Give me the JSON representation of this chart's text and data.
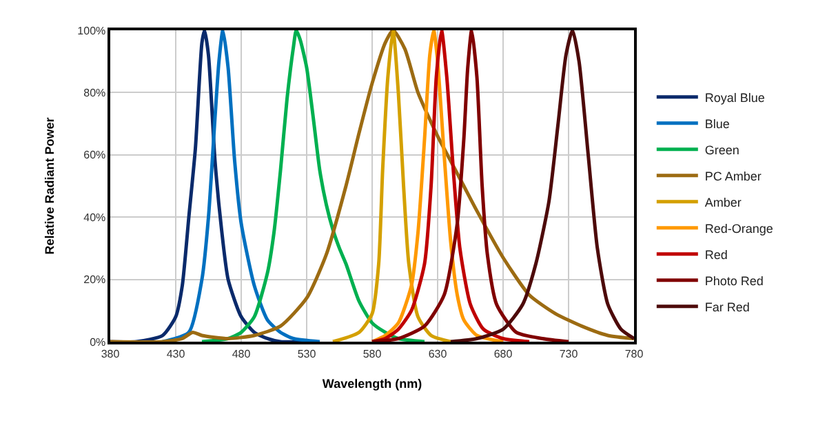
{
  "chart_data": {
    "type": "line",
    "xlabel": "Wavelength (nm)",
    "ylabel": "Relative Radiant Power",
    "xlim": [
      380,
      780
    ],
    "xticks": [
      380,
      430,
      480,
      530,
      580,
      630,
      680,
      730,
      780
    ],
    "ylim": [
      0,
      100
    ],
    "yticks": [
      {
        "value": 0,
        "label": "0%"
      },
      {
        "value": 20,
        "label": "20%"
      },
      {
        "value": 40,
        "label": "40%"
      },
      {
        "value": 60,
        "label": "60%"
      },
      {
        "value": 80,
        "label": "80%"
      },
      {
        "value": 100,
        "label": "100%"
      }
    ],
    "grid": true,
    "legend": "right",
    "marker": "none",
    "line_style": "solid",
    "series": [
      {
        "name": "Royal Blue",
        "color": "#0a2a6b",
        "x": [
          380,
          400,
          420,
          430,
          435,
          440,
          445,
          450,
          452,
          455,
          460,
          465,
          470,
          480,
          490,
          500,
          510,
          530
        ],
        "values": [
          0,
          0,
          2,
          8,
          18,
          40,
          62,
          96,
          100,
          92,
          58,
          36,
          20,
          8,
          3,
          1,
          0,
          0
        ]
      },
      {
        "name": "Blue",
        "color": "#0070c0",
        "x": [
          420,
          440,
          450,
          455,
          460,
          463,
          466,
          470,
          475,
          480,
          490,
          500,
          510,
          520,
          540
        ],
        "values": [
          0,
          3,
          20,
          40,
          72,
          90,
          100,
          88,
          58,
          38,
          18,
          7,
          3,
          1,
          0
        ]
      },
      {
        "name": "Green",
        "color": "#00b050",
        "x": [
          450,
          470,
          480,
          490,
          500,
          505,
          510,
          515,
          520,
          522,
          525,
          530,
          535,
          540,
          545,
          550,
          555,
          560,
          570,
          580,
          590,
          600,
          620
        ],
        "values": [
          0,
          1,
          3,
          8,
          22,
          35,
          55,
          78,
          95,
          100,
          97,
          88,
          72,
          55,
          44,
          36,
          30,
          25,
          13,
          6,
          3,
          1,
          0
        ]
      },
      {
        "name": "PC Amber",
        "color": "#9c6b12",
        "x": [
          380,
          420,
          435,
          443,
          450,
          470,
          490,
          510,
          530,
          545,
          560,
          570,
          580,
          590,
          596,
          605,
          615,
          630,
          640,
          650,
          660,
          680,
          700,
          720,
          740,
          760,
          780
        ],
        "values": [
          0,
          0,
          1,
          3,
          2,
          1,
          2,
          5,
          14,
          28,
          50,
          67,
          83,
          96,
          100,
          94,
          80,
          66,
          58,
          50,
          42,
          27,
          15,
          9,
          5,
          2,
          1
        ]
      },
      {
        "name": "Amber",
        "color": "#d4a000",
        "x": [
          550,
          570,
          580,
          585,
          588,
          592,
          596,
          600,
          604,
          608,
          615,
          625,
          640
        ],
        "values": [
          0,
          3,
          9,
          25,
          55,
          85,
          100,
          80,
          50,
          25,
          8,
          2,
          0
        ]
      },
      {
        "name": "Red-Orange",
        "color": "#ff9900",
        "x": [
          580,
          590,
          600,
          610,
          615,
          620,
          624,
          627,
          630,
          635,
          640,
          645,
          650,
          660,
          680
        ],
        "values": [
          0,
          2,
          6,
          18,
          35,
          65,
          92,
          100,
          90,
          60,
          32,
          15,
          7,
          2,
          0
        ]
      },
      {
        "name": "Red",
        "color": "#c00000",
        "x": [
          580,
          590,
          600,
          610,
          620,
          625,
          629,
          633,
          637,
          642,
          647,
          655,
          665,
          680,
          700
        ],
        "values": [
          0,
          1,
          4,
          10,
          25,
          50,
          85,
          100,
          85,
          55,
          30,
          12,
          4,
          1,
          0
        ]
      },
      {
        "name": "Photo Red",
        "color": "#800000",
        "x": [
          580,
          600,
          620,
          635,
          645,
          650,
          653,
          656,
          660,
          664,
          668,
          675,
          690,
          710,
          730
        ],
        "values": [
          0,
          1,
          5,
          15,
          38,
          65,
          88,
          100,
          85,
          50,
          28,
          12,
          3,
          1,
          0
        ]
      },
      {
        "name": "Far Red",
        "color": "#4d0a0a",
        "x": [
          640,
          660,
          680,
          695,
          705,
          715,
          722,
          728,
          733,
          738,
          745,
          752,
          760,
          770,
          780
        ],
        "values": [
          0,
          1,
          4,
          12,
          25,
          45,
          70,
          92,
          100,
          90,
          60,
          30,
          12,
          4,
          1
        ]
      }
    ]
  }
}
